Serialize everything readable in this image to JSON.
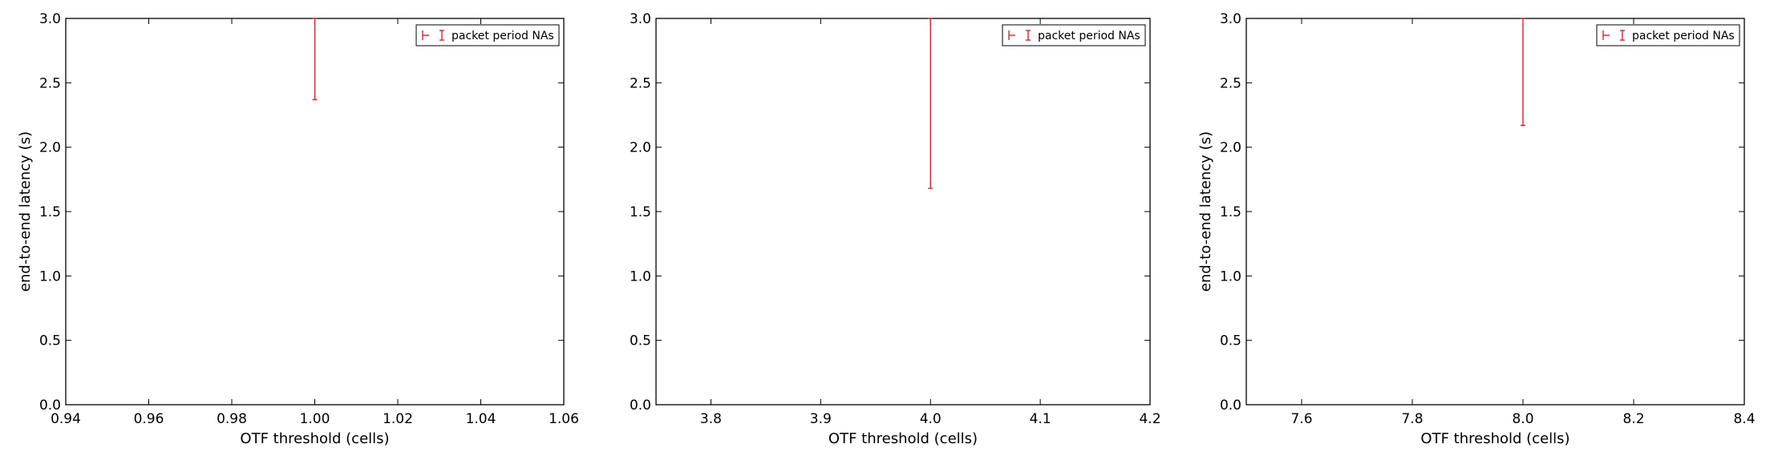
{
  "chart_data": [
    {
      "type": "errorbar",
      "xlabel": "OTF threshold (cells)",
      "ylabel": "end-to-end latency (s)",
      "xlim": [
        0.94,
        1.06
      ],
      "ylim": [
        0.0,
        3.0
      ],
      "xticks": [
        "0.94",
        "0.96",
        "0.98",
        "1.00",
        "1.02",
        "1.04",
        "1.06"
      ],
      "yticks": [
        "0.0",
        "0.5",
        "1.0",
        "1.5",
        "2.0",
        "2.5",
        "3.0"
      ],
      "legend_position": "top-right",
      "series": [
        {
          "name": "packet period NAs",
          "color": "#e8202a",
          "points": [
            {
              "x": 1.0,
              "y_low": 2.37,
              "y_high": 3.0
            }
          ]
        }
      ]
    },
    {
      "type": "errorbar",
      "xlabel": "OTF threshold (cells)",
      "ylabel": "",
      "xlim": [
        3.75,
        4.2
      ],
      "ylim": [
        0.0,
        3.0
      ],
      "xticks": [
        "3.8",
        "3.9",
        "4.0",
        "4.1",
        "4.2"
      ],
      "yticks": [
        "0.0",
        "0.5",
        "1.0",
        "1.5",
        "2.0",
        "2.5",
        "3.0"
      ],
      "legend_position": "top-right",
      "series": [
        {
          "name": "packet period NAs",
          "color": "#e8202a",
          "points": [
            {
              "x": 4.0,
              "y_low": 1.68,
              "y_high": 3.0
            }
          ]
        }
      ]
    },
    {
      "type": "errorbar",
      "xlabel": "OTF threshold (cells)",
      "ylabel": "end-to-end latency (s)",
      "xlim": [
        7.5,
        8.4
      ],
      "ylim": [
        0.0,
        3.0
      ],
      "xticks": [
        "7.6",
        "7.8",
        "8.0",
        "8.2",
        "8.4"
      ],
      "yticks": [
        "0.0",
        "0.5",
        "1.0",
        "1.5",
        "2.0",
        "2.5",
        "3.0"
      ],
      "legend_position": "top-right",
      "series": [
        {
          "name": "packet period NAs",
          "color": "#e8202a",
          "points": [
            {
              "x": 8.0,
              "y_low": 2.17,
              "y_high": 3.0
            }
          ]
        }
      ]
    }
  ]
}
